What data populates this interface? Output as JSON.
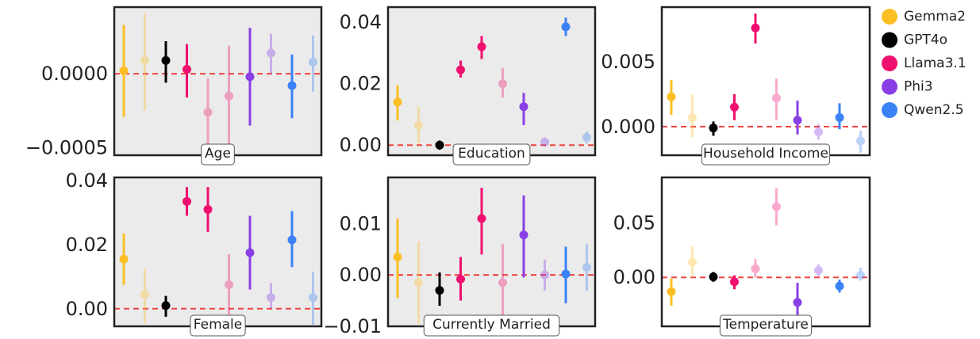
{
  "chart_data": {
    "type": "scatter",
    "legend": {
      "placement": "right",
      "entries": [
        {
          "name": "Gemma2",
          "color": "#FBBF24"
        },
        {
          "name": "GPT4o",
          "color": "#000000"
        },
        {
          "name": "Llama3.1",
          "color": "#F0106F"
        },
        {
          "name": "Phi3",
          "color": "#8A3FE6"
        },
        {
          "name": "Qwen2.5",
          "color": "#3B82F6"
        }
      ]
    },
    "panels": [
      {
        "label": "Age",
        "shaded": true,
        "ylim": [
          -0.00055,
          0.00045
        ],
        "yticks": [
          {
            "value": -0.0005,
            "label": "−0.0005"
          },
          {
            "value": 0.0,
            "label": "0.0000"
          }
        ],
        "points": [
          {
            "model": "Gemma2",
            "faded": false,
            "y": 2e-05,
            "low": -0.00029,
            "high": 0.00033
          },
          {
            "model": "Gemma2",
            "faded": true,
            "y": 9e-05,
            "low": -0.00025,
            "high": 0.00041
          },
          {
            "model": "GPT4o",
            "faded": false,
            "y": 9e-05,
            "low": -6e-05,
            "high": 0.00022
          },
          {
            "model": "Llama3.1",
            "faded": false,
            "y": 3e-05,
            "low": -0.00016,
            "high": 0.0002
          },
          {
            "model": "Llama3.1",
            "faded": true,
            "y": -0.00026,
            "low": -0.00056,
            "high": -3e-05
          },
          {
            "model": "Llama3.1",
            "faded": true,
            "y": -0.00015,
            "low": -0.00051,
            "high": 0.00019
          },
          {
            "model": "Phi3",
            "faded": false,
            "y": -2e-05,
            "low": -0.00035,
            "high": 0.00031
          },
          {
            "model": "Phi3",
            "faded": true,
            "y": 0.00014,
            "low": 0.0,
            "high": 0.00027
          },
          {
            "model": "Qwen2.5",
            "faded": false,
            "y": -8e-05,
            "low": -0.0003,
            "high": 0.00013
          },
          {
            "model": "Qwen2.5",
            "faded": true,
            "y": 8e-05,
            "low": -0.00012,
            "high": 0.00026
          }
        ]
      },
      {
        "label": "Education",
        "shaded": true,
        "ylim": [
          -0.0033,
          0.0449
        ],
        "yticks": [
          {
            "value": 0.0,
            "label": "0.00"
          },
          {
            "value": 0.02,
            "label": "0.02"
          },
          {
            "value": 0.04,
            "label": "0.04"
          }
        ],
        "points": [
          {
            "model": "Gemma2",
            "faded": false,
            "y": 0.014,
            "low": 0.008,
            "high": 0.0195
          },
          {
            "model": "Gemma2",
            "faded": true,
            "y": 0.0065,
            "low": 0.0005,
            "high": 0.0125
          },
          {
            "model": "GPT4o",
            "faded": false,
            "y": 0.0,
            "low": -0.0015,
            "high": 0.0015
          },
          {
            "model": "Llama3.1",
            "faded": false,
            "y": 0.0245,
            "low": 0.022,
            "high": 0.0275
          },
          {
            "model": "Llama3.1",
            "faded": false,
            "y": 0.032,
            "low": 0.028,
            "high": 0.0355
          },
          {
            "model": "Llama3.1",
            "faded": true,
            "y": 0.02,
            "low": 0.0155,
            "high": 0.025
          },
          {
            "model": "Phi3",
            "faded": false,
            "y": 0.0125,
            "low": 0.0065,
            "high": 0.017
          },
          {
            "model": "Phi3",
            "faded": true,
            "y": 0.001,
            "low": -0.0005,
            "high": 0.0025
          },
          {
            "model": "Qwen2.5",
            "faded": false,
            "y": 0.0385,
            "low": 0.0355,
            "high": 0.0415
          },
          {
            "model": "Qwen2.5",
            "faded": true,
            "y": 0.0025,
            "low": 0.0005,
            "high": 0.0045
          }
        ]
      },
      {
        "label": "Household Income",
        "shaded": false,
        "ylim": [
          -0.0022,
          0.0092
        ],
        "yticks": [
          {
            "value": 0.0,
            "label": "0.000"
          },
          {
            "value": 0.005,
            "label": "0.005"
          }
        ],
        "points": [
          {
            "model": "Gemma2",
            "faded": false,
            "y": 0.0023,
            "low": 0.0009,
            "high": 0.0036
          },
          {
            "model": "Gemma2",
            "faded": true,
            "y": 0.0007,
            "low": -0.0008,
            "high": 0.0025
          },
          {
            "model": "GPT4o",
            "faded": false,
            "y": -0.0001,
            "low": -0.0007,
            "high": 0.0004
          },
          {
            "model": "Llama3.1",
            "faded": false,
            "y": 0.0015,
            "low": 0.0005,
            "high": 0.0025
          },
          {
            "model": "Llama3.1",
            "faded": false,
            "y": 0.0076,
            "low": 0.0064,
            "high": 0.0087
          },
          {
            "model": "Llama3.1",
            "faded": true,
            "y": 0.0022,
            "low": 0.0005,
            "high": 0.0037
          },
          {
            "model": "Phi3",
            "faded": false,
            "y": 0.0005,
            "low": -0.0006,
            "high": 0.002
          },
          {
            "model": "Phi3",
            "faded": true,
            "y": -0.0004,
            "low": -0.001,
            "high": 0.0002
          },
          {
            "model": "Qwen2.5",
            "faded": false,
            "y": 0.0007,
            "low": -0.0002,
            "high": 0.0018
          },
          {
            "model": "Qwen2.5",
            "faded": true,
            "y": -0.0011,
            "low": -0.002,
            "high": -0.0003
          }
        ]
      },
      {
        "label": "Female",
        "shaded": true,
        "ylim": [
          -0.0055,
          0.041
        ],
        "yticks": [
          {
            "value": 0.0,
            "label": "0.00"
          },
          {
            "value": 0.02,
            "label": "0.02"
          },
          {
            "value": 0.04,
            "label": "0.04"
          }
        ],
        "points": [
          {
            "model": "Gemma2",
            "faded": false,
            "y": 0.0155,
            "low": 0.0075,
            "high": 0.0235
          },
          {
            "model": "Gemma2",
            "faded": true,
            "y": 0.0045,
            "low": -0.0045,
            "high": 0.0125
          },
          {
            "model": "GPT4o",
            "faded": false,
            "y": 0.001,
            "low": -0.0025,
            "high": 0.004
          },
          {
            "model": "Llama3.1",
            "faded": false,
            "y": 0.0335,
            "low": 0.029,
            "high": 0.038
          },
          {
            "model": "Llama3.1",
            "faded": false,
            "y": 0.031,
            "low": 0.024,
            "high": 0.038
          },
          {
            "model": "Llama3.1",
            "faded": true,
            "y": 0.0075,
            "low": -0.004,
            "high": 0.017
          },
          {
            "model": "Phi3",
            "faded": false,
            "y": 0.0175,
            "low": 0.006,
            "high": 0.029
          },
          {
            "model": "Phi3",
            "faded": true,
            "y": 0.0035,
            "low": 0.0,
            "high": 0.008
          },
          {
            "model": "Qwen2.5",
            "faded": false,
            "y": 0.0215,
            "low": 0.013,
            "high": 0.0305
          },
          {
            "model": "Qwen2.5",
            "faded": true,
            "y": 0.0035,
            "low": -0.005,
            "high": 0.0115
          }
        ]
      },
      {
        "label": "Currently Married",
        "shaded": true,
        "ylim": [
          -0.01,
          0.019
        ],
        "yticks": [
          {
            "value": -0.01,
            "label": "−0.01"
          },
          {
            "value": 0.0,
            "label": "0.00"
          },
          {
            "value": 0.01,
            "label": "0.01"
          }
        ],
        "points": [
          {
            "model": "Gemma2",
            "faded": false,
            "y": 0.0035,
            "low": -0.0045,
            "high": 0.011
          },
          {
            "model": "Gemma2",
            "faded": true,
            "y": -0.0015,
            "low": -0.0095,
            "high": 0.0065
          },
          {
            "model": "GPT4o",
            "faded": false,
            "y": -0.003,
            "low": -0.006,
            "high": 0.0005
          },
          {
            "model": "Llama3.1",
            "faded": false,
            "y": -0.0008,
            "low": -0.005,
            "high": 0.0035
          },
          {
            "model": "Llama3.1",
            "faded": false,
            "y": 0.011,
            "low": 0.004,
            "high": 0.017
          },
          {
            "model": "Llama3.1",
            "faded": true,
            "y": -0.0015,
            "low": -0.01,
            "high": 0.006
          },
          {
            "model": "Phi3",
            "faded": false,
            "y": 0.0078,
            "low": -0.0005,
            "high": 0.0155
          },
          {
            "model": "Phi3",
            "faded": true,
            "y": 0.0,
            "low": -0.003,
            "high": 0.003
          },
          {
            "model": "Qwen2.5",
            "faded": false,
            "y": 0.0002,
            "low": -0.0055,
            "high": 0.0055
          },
          {
            "model": "Qwen2.5",
            "faded": true,
            "y": 0.0015,
            "low": -0.003,
            "high": 0.006
          }
        ]
      },
      {
        "label": "Temperature",
        "shaded": false,
        "ylim": [
          -0.045,
          0.092
        ],
        "yticks": [
          {
            "value": 0.0,
            "label": "0.00"
          },
          {
            "value": 0.05,
            "label": "0.05"
          }
        ],
        "points": [
          {
            "model": "Gemma2",
            "faded": false,
            "y": -0.013,
            "low": -0.026,
            "high": -0.001
          },
          {
            "model": "Gemma2",
            "faded": true,
            "y": 0.014,
            "low": 0.0,
            "high": 0.029
          },
          {
            "model": "GPT4o",
            "faded": false,
            "y": 0.0005,
            "low": -0.004,
            "high": 0.005
          },
          {
            "model": "Llama3.1",
            "faded": false,
            "y": -0.004,
            "low": -0.011,
            "high": 0.002
          },
          {
            "model": "Llama3.1",
            "faded": true,
            "y": 0.008,
            "low": 0.0,
            "high": 0.017
          },
          {
            "model": "Llama3.1",
            "faded": true,
            "y": 0.065,
            "low": 0.048,
            "high": 0.082
          },
          {
            "model": "Phi3",
            "faded": false,
            "y": -0.023,
            "low": -0.04,
            "high": -0.005
          },
          {
            "model": "Phi3",
            "faded": true,
            "y": 0.0065,
            "low": 0.001,
            "high": 0.012
          },
          {
            "model": "Qwen2.5",
            "faded": false,
            "y": -0.008,
            "low": -0.014,
            "high": -0.002
          },
          {
            "model": "Qwen2.5",
            "faded": true,
            "y": 0.002,
            "low": -0.003,
            "high": 0.009
          }
        ]
      }
    ]
  }
}
